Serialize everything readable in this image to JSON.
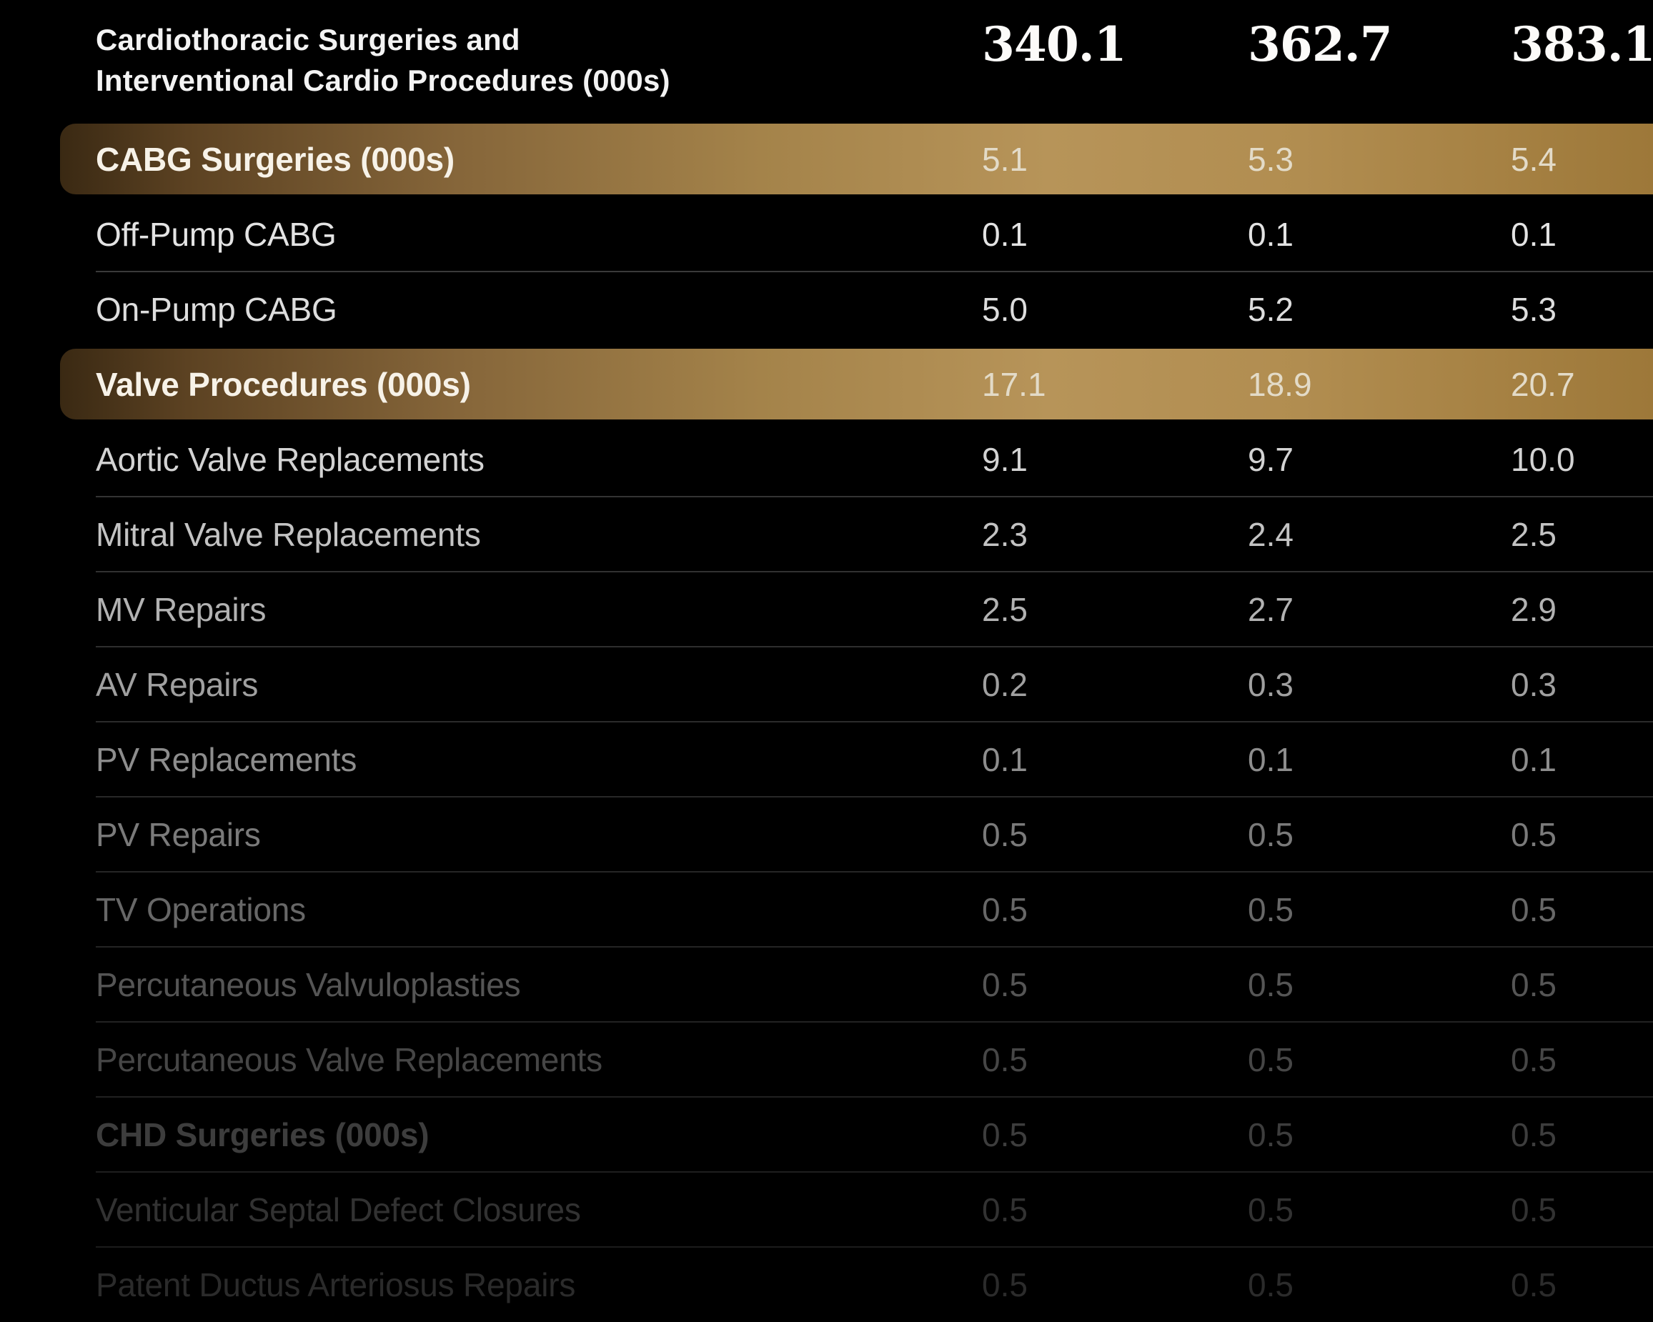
{
  "table": {
    "title_line1": "Cardiothoracic Surgeries and",
    "title_line2": "Interventional Cardio Procedures (000s)",
    "header_values": [
      "340.1",
      "362.7",
      "383.1"
    ],
    "rows": [
      {
        "label": "CABG Surgeries (000s)",
        "values": [
          "5.1",
          "5.3",
          "5.4"
        ],
        "style": "highlight",
        "text_color": "#f7f2e8",
        "divider": false
      },
      {
        "label": "Off-Pump CABG",
        "values": [
          "0.1",
          "0.1",
          "0.1"
        ],
        "style": "normal",
        "text_color": "#e3e3e3",
        "divider": false
      },
      {
        "label": "On-Pump CABG",
        "values": [
          "5.0",
          "5.2",
          "5.3"
        ],
        "style": "normal",
        "text_color": "#dddddd",
        "divider": true,
        "divider_color": "#3a3a3a"
      },
      {
        "label": "Valve Procedures (000s)",
        "values": [
          "17.1",
          "18.9",
          "20.7"
        ],
        "style": "highlight",
        "text_color": "#f7f2e8",
        "divider": false
      },
      {
        "label": "Aortic Valve Replacements",
        "values": [
          "9.1",
          "9.7",
          "10.0"
        ],
        "style": "normal",
        "text_color": "#d3d3d3",
        "divider": false
      },
      {
        "label": "Mitral Valve Replacements",
        "values": [
          "2.3",
          "2.4",
          "2.5"
        ],
        "style": "normal",
        "text_color": "#c3c3c3",
        "divider": true,
        "divider_color": "#343434"
      },
      {
        "label": "MV Repairs",
        "values": [
          "2.5",
          "2.7",
          "2.9"
        ],
        "style": "normal",
        "text_color": "#b2b2b2",
        "divider": true,
        "divider_color": "#313131"
      },
      {
        "label": "AV Repairs",
        "values": [
          "0.2",
          "0.3",
          "0.3"
        ],
        "style": "normal",
        "text_color": "#a0a0a0",
        "divider": true,
        "divider_color": "#2e2e2e"
      },
      {
        "label": "PV Replacements",
        "values": [
          "0.1",
          "0.1",
          "0.1"
        ],
        "style": "normal",
        "text_color": "#8d8d8d",
        "divider": true,
        "divider_color": "#2b2b2b"
      },
      {
        "label": "PV Repairs",
        "values": [
          "0.5",
          "0.5",
          "0.5"
        ],
        "style": "normal",
        "text_color": "#7a7a7a",
        "divider": true,
        "divider_color": "#282828"
      },
      {
        "label": "TV Operations",
        "values": [
          "0.5",
          "0.5",
          "0.5"
        ],
        "style": "normal",
        "text_color": "#676767",
        "divider": true,
        "divider_color": "#262626"
      },
      {
        "label": "Percutaneous Valvuloplasties",
        "values": [
          "0.5",
          "0.5",
          "0.5"
        ],
        "style": "normal",
        "text_color": "#555555",
        "divider": true,
        "divider_color": "#242424"
      },
      {
        "label": "Percutaneous Valve Replacements",
        "values": [
          "0.5",
          "0.5",
          "0.5"
        ],
        "style": "normal",
        "text_color": "#464646",
        "divider": true,
        "divider_color": "#222222"
      },
      {
        "label": "CHD Surgeries (000s)",
        "values": [
          "0.5",
          "0.5",
          "0.5"
        ],
        "style": "bold",
        "text_color": "#3d3d3d",
        "divider": true,
        "divider_color": "#202020"
      },
      {
        "label": "Venticular Septal Defect Closures",
        "values": [
          "0.5",
          "0.5",
          "0.5"
        ],
        "style": "normal",
        "text_color": "#323232",
        "divider": true,
        "divider_color": "#1e1e1e"
      },
      {
        "label": "Patent Ductus Arteriosus Repairs",
        "values": [
          "0.5",
          "0.5",
          "0.5"
        ],
        "style": "normal",
        "text_color": "#2b2b2b",
        "divider": true,
        "divider_color": "#1c1c1c"
      }
    ]
  },
  "colors": {
    "background": "#000000",
    "highlight_gold_start": "#3a2913",
    "highlight_gold_mid": "#b79459",
    "highlight_gold_end": "#9d7839",
    "title_text": "#f3f3f3",
    "header_value_text": "#fcfbf9"
  },
  "chart_data": {
    "type": "table",
    "title": "Cardiothoracic Surgeries and Interventional Cardio Procedures (000s)",
    "header_row": {
      "label": "Cardiothoracic Surgeries and Interventional Cardio Procedures (000s)",
      "values": [
        340.1,
        362.7,
        383.1
      ]
    },
    "rows": [
      {
        "label": "CABG Surgeries (000s)",
        "values": [
          5.1,
          5.3,
          5.4
        ],
        "highlighted": true
      },
      {
        "label": "Off-Pump CABG",
        "values": [
          0.1,
          0.1,
          0.1
        ]
      },
      {
        "label": "On-Pump CABG",
        "values": [
          5.0,
          5.2,
          5.3
        ]
      },
      {
        "label": "Valve Procedures (000s)",
        "values": [
          17.1,
          18.9,
          20.7
        ],
        "highlighted": true
      },
      {
        "label": "Aortic Valve Replacements",
        "values": [
          9.1,
          9.7,
          10.0
        ]
      },
      {
        "label": "Mitral Valve Replacements",
        "values": [
          2.3,
          2.4,
          2.5
        ]
      },
      {
        "label": "MV Repairs",
        "values": [
          2.5,
          2.7,
          2.9
        ]
      },
      {
        "label": "AV Repairs",
        "values": [
          0.2,
          0.3,
          0.3
        ]
      },
      {
        "label": "PV Replacements",
        "values": [
          0.1,
          0.1,
          0.1
        ]
      },
      {
        "label": "PV Repairs",
        "values": [
          0.5,
          0.5,
          0.5
        ]
      },
      {
        "label": "TV Operations",
        "values": [
          0.5,
          0.5,
          0.5
        ]
      },
      {
        "label": "Percutaneous Valvuloplasties",
        "values": [
          0.5,
          0.5,
          0.5
        ]
      },
      {
        "label": "Percutaneous Valve Replacements",
        "values": [
          0.5,
          0.5,
          0.5
        ]
      },
      {
        "label": "CHD Surgeries (000s)",
        "values": [
          0.5,
          0.5,
          0.5
        ],
        "bold": true
      },
      {
        "label": "Venticular Septal Defect Closures",
        "values": [
          0.5,
          0.5,
          0.5
        ]
      },
      {
        "label": "Patent Ductus Arteriosus Repairs",
        "values": [
          0.5,
          0.5,
          0.5
        ]
      }
    ]
  }
}
